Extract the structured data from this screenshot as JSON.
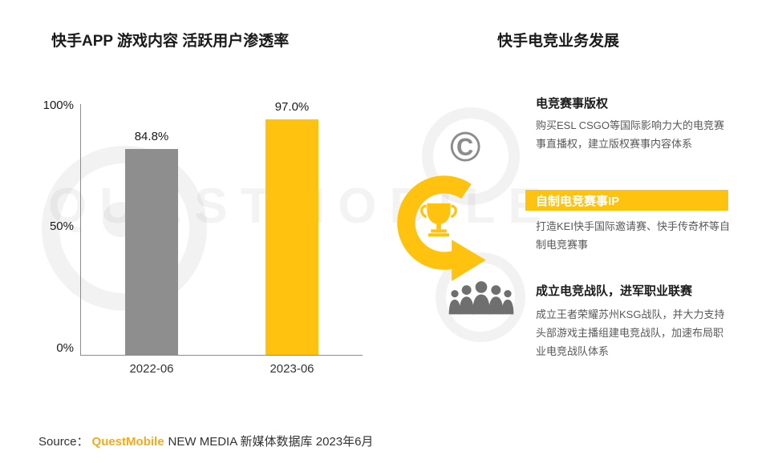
{
  "watermark": {
    "text": "QUESTMOBILE"
  },
  "left": {
    "title": "快手APP 游戏内容 活跃用户渗透率",
    "chart_data": {
      "type": "bar",
      "categories": [
        "2022-06",
        "2023-06"
      ],
      "values": [
        84.8,
        97.0
      ],
      "value_labels": [
        "84.8%",
        "97.0%"
      ],
      "ylim": [
        0,
        100
      ],
      "yticks": [
        "100%",
        "50%",
        "0%"
      ],
      "bar_colors": [
        "#8e8e8e",
        "#FFC20E"
      ],
      "title": "快手APP 游戏内容 活跃用户渗透率",
      "xlabel": "",
      "ylabel": "",
      "grid": false,
      "legend": false
    }
  },
  "right": {
    "title": "快手电竞业务发展",
    "items": [
      {
        "heading": "电竞赛事版权",
        "body": "购买ESL  CSGO等国际影响力大的电竞赛事直播权，建立版权赛事内容体系",
        "icon": "copyright-icon",
        "highlighted": false
      },
      {
        "heading": "自制电竞赛事IP",
        "body": "打造KEI快手国际邀请赛、快手传奇杯等自制电竞赛事",
        "icon": "trophy-icon",
        "highlighted": true
      },
      {
        "heading": "成立电竞战队，进军职业联赛",
        "body": "成立王者荣耀苏州KSG战队，并大力支持头部游戏主播组建电竞战队，加速布局职业电竞战队体系",
        "icon": "people-icon",
        "highlighted": false
      }
    ]
  },
  "footer": {
    "source_label": "Source：",
    "brand": "QuestMobile",
    "rest": "NEW MEDIA 新媒体数据库 2023年6月"
  },
  "colors": {
    "accent": "#FFC20E",
    "brand": "#F9A81A",
    "gray_icon": "#6f6f6f"
  }
}
